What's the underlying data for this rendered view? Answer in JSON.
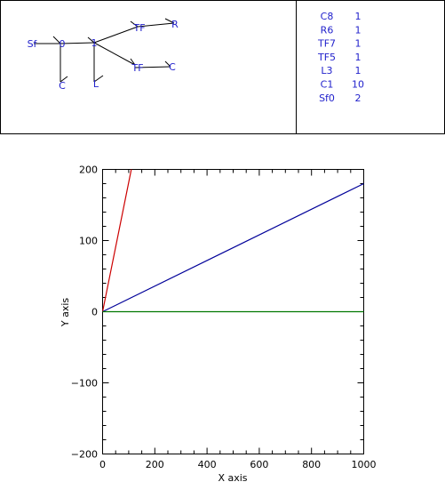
{
  "bond_graph": {
    "nodes": {
      "sf": "Sf",
      "j0": "0",
      "c_left": "C",
      "j1": "1",
      "l": "L",
      "tf_top": "TF",
      "r": "R",
      "tf_mid": "TF",
      "c_right": "C"
    },
    "color": "#2222cc"
  },
  "component_table": {
    "rows": [
      {
        "name": "C8",
        "count": "1"
      },
      {
        "name": "R6",
        "count": "1"
      },
      {
        "name": "TF7",
        "count": "1"
      },
      {
        "name": "TF5",
        "count": "1"
      },
      {
        "name": "L3",
        "count": "1"
      },
      {
        "name": "C1",
        "count": "10"
      },
      {
        "name": "Sf0",
        "count": "2"
      }
    ],
    "color": "#2222cc"
  },
  "chart_data": {
    "type": "line",
    "xlabel": "X axis",
    "ylabel": "Y axis",
    "xlim": [
      0,
      1000
    ],
    "ylim": [
      -200,
      200
    ],
    "x_ticks": [
      "0",
      "200",
      "400",
      "600",
      "800",
      "1000"
    ],
    "y_ticks": [
      "−200",
      "−100",
      "0",
      "100",
      "200"
    ],
    "series": [
      {
        "color": "#cc0000",
        "x": [
          0,
          110
        ],
        "y": [
          0,
          200
        ]
      },
      {
        "color": "#000099",
        "x": [
          0,
          1000
        ],
        "y": [
          0,
          180
        ]
      },
      {
        "color": "#007700",
        "x": [
          0,
          1000
        ],
        "y": [
          0,
          0
        ]
      }
    ]
  }
}
